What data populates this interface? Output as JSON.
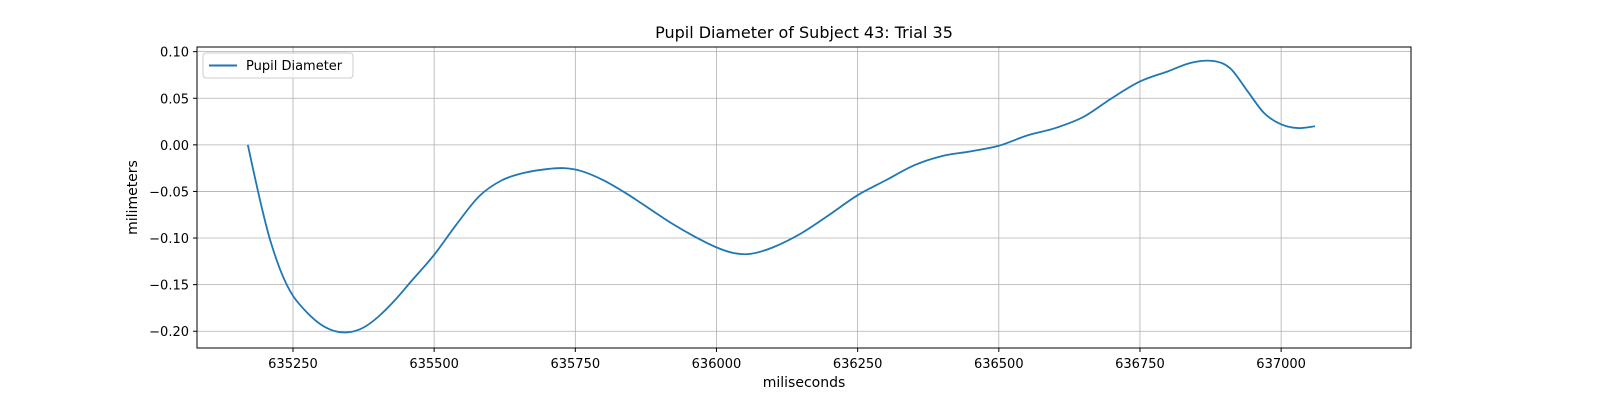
{
  "chart_data": {
    "type": "line",
    "title": "Pupil Diameter of Subject 43: Trial 35",
    "xlabel": "miliseconds",
    "ylabel": "milimeters",
    "xlim": [
      635080,
      637230
    ],
    "ylim": [
      -0.218,
      0.105
    ],
    "xticks": [
      635250,
      635500,
      635750,
      636000,
      636250,
      636500,
      636750,
      637000
    ],
    "xtick_labels": [
      "635250",
      "635500",
      "635750",
      "636000",
      "636250",
      "636500",
      "636750",
      "637000"
    ],
    "yticks": [
      -0.2,
      -0.15,
      -0.1,
      -0.05,
      0.0,
      0.05,
      0.1
    ],
    "ytick_labels": [
      "−0.20",
      "−0.15",
      "−0.10",
      "−0.05",
      "0.00",
      "0.05",
      "0.10"
    ],
    "grid": true,
    "legend_position": "top-left",
    "series": [
      {
        "name": "Pupil Diameter",
        "color": "#1f77b4",
        "x": [
          635170,
          635180,
          635195,
          635210,
          635230,
          635250,
          635275,
          635300,
          635325,
          635350,
          635375,
          635400,
          635430,
          635460,
          635500,
          635540,
          635580,
          635620,
          635660,
          635700,
          635730,
          635760,
          635800,
          635840,
          635880,
          635920,
          635960,
          636000,
          636030,
          636060,
          636100,
          636150,
          636200,
          636250,
          636300,
          636350,
          636400,
          636450,
          636500,
          636550,
          636600,
          636650,
          636700,
          636750,
          636800,
          636840,
          636880,
          636910,
          636940,
          636970,
          637000,
          637030,
          637060
        ],
        "y": [
          0.0,
          -0.028,
          -0.068,
          -0.103,
          -0.138,
          -0.162,
          -0.18,
          -0.193,
          -0.2,
          -0.201,
          -0.196,
          -0.185,
          -0.167,
          -0.146,
          -0.118,
          -0.085,
          -0.055,
          -0.038,
          -0.03,
          -0.026,
          -0.025,
          -0.028,
          -0.038,
          -0.052,
          -0.068,
          -0.084,
          -0.098,
          -0.11,
          -0.116,
          -0.117,
          -0.11,
          -0.095,
          -0.075,
          -0.054,
          -0.038,
          -0.022,
          -0.012,
          -0.007,
          -0.001,
          0.01,
          0.018,
          0.03,
          0.05,
          0.068,
          0.079,
          0.088,
          0.09,
          0.082,
          0.058,
          0.034,
          0.022,
          0.018,
          0.02
        ]
      }
    ]
  }
}
